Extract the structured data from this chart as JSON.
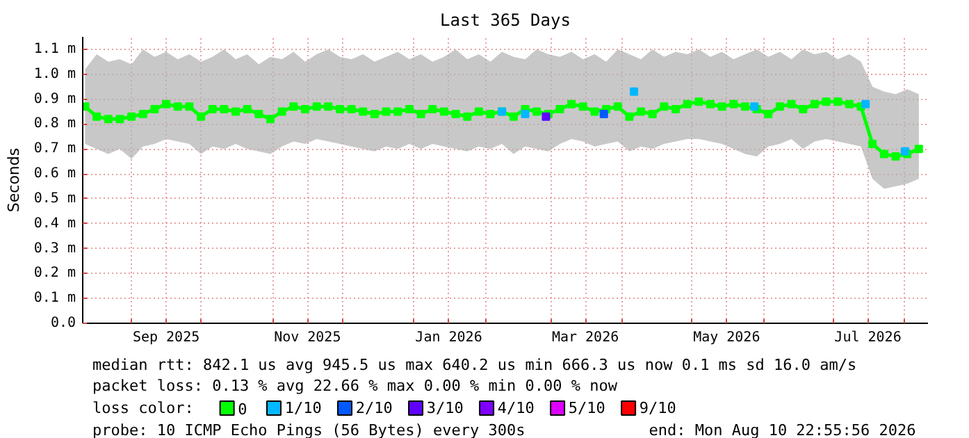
{
  "chart_data": {
    "type": "line",
    "title": "Last 365 Days",
    "ylabel": "Seconds",
    "legend_title": "loss color:",
    "legend": "bottom",
    "grid": true,
    "marker": "square",
    "x": [
      "2025-08-12",
      "2025-08-17",
      "2025-08-22",
      "2025-08-27",
      "2025-09-01",
      "2025-09-06",
      "2025-09-11",
      "2025-09-16",
      "2025-09-21",
      "2025-09-26",
      "2025-10-01",
      "2025-10-06",
      "2025-10-11",
      "2025-10-16",
      "2025-10-21",
      "2025-10-26",
      "2025-10-31",
      "2025-11-05",
      "2025-11-10",
      "2025-11-15",
      "2025-11-20",
      "2025-11-25",
      "2025-11-30",
      "2025-12-05",
      "2025-12-10",
      "2025-12-15",
      "2025-12-20",
      "2025-12-25",
      "2025-12-30",
      "2026-01-04",
      "2026-01-09",
      "2026-01-14",
      "2026-01-19",
      "2026-01-24",
      "2026-01-29",
      "2026-02-03",
      "2026-02-08",
      "2026-02-13",
      "2026-02-18",
      "2026-02-23",
      "2026-02-28",
      "2026-03-05",
      "2026-03-10",
      "2026-03-15",
      "2026-03-20",
      "2026-03-25",
      "2026-03-30",
      "2026-04-04",
      "2026-04-09",
      "2026-04-14",
      "2026-04-19",
      "2026-04-24",
      "2026-04-29",
      "2026-05-04",
      "2026-05-09",
      "2026-05-14",
      "2026-05-19",
      "2026-05-24",
      "2026-05-29",
      "2026-06-03",
      "2026-06-08",
      "2026-06-13",
      "2026-06-18",
      "2026-06-23",
      "2026-06-28",
      "2026-07-03",
      "2026-07-08",
      "2026-07-13",
      "2026-07-18",
      "2026-07-23",
      "2026-07-28",
      "2026-08-02",
      "2026-08-07"
    ],
    "xlim": [
      "2025-08-10T22:55",
      "2026-08-10T22:55"
    ],
    "xticks": [
      {
        "value": "2025-09-01",
        "label": null
      },
      {
        "value": "2025-09-16",
        "label": "Sep 2025"
      },
      {
        "value": "2025-10-01",
        "label": null
      },
      {
        "value": "2025-11-01",
        "label": null
      },
      {
        "value": "2025-11-16",
        "label": "Nov 2025"
      },
      {
        "value": "2025-12-01",
        "label": null
      },
      {
        "value": "2026-01-01",
        "label": null
      },
      {
        "value": "2026-01-16",
        "label": "Jan 2026"
      },
      {
        "value": "2026-02-01",
        "label": null
      },
      {
        "value": "2026-03-01",
        "label": null
      },
      {
        "value": "2026-03-16",
        "label": "Mar 2026"
      },
      {
        "value": "2026-04-01",
        "label": null
      },
      {
        "value": "2026-05-01",
        "label": null
      },
      {
        "value": "2026-05-16",
        "label": "May 2026"
      },
      {
        "value": "2026-06-01",
        "label": null
      },
      {
        "value": "2026-07-01",
        "label": null
      },
      {
        "value": "2026-07-16",
        "label": "Jul 2026"
      },
      {
        "value": "2026-08-01",
        "label": null
      }
    ],
    "ylim": [
      0,
      1.15
    ],
    "yticks": [
      {
        "value": 0,
        "label": "0.0"
      },
      {
        "value": 0.1,
        "label": "0.1 m"
      },
      {
        "value": 0.2,
        "label": "0.2 m"
      },
      {
        "value": 0.3,
        "label": "0.3 m"
      },
      {
        "value": 0.4,
        "label": "0.4 m"
      },
      {
        "value": 0.5,
        "label": "0.5 m"
      },
      {
        "value": 0.6,
        "label": "0.6 m"
      },
      {
        "value": 0.7,
        "label": "0.7 m"
      },
      {
        "value": 0.8,
        "label": "0.8 m"
      },
      {
        "value": 0.9,
        "label": "0.9 m"
      },
      {
        "value": 1.0,
        "label": "1.0 m"
      },
      {
        "value": 1.1,
        "label": "1.1 m"
      }
    ],
    "series": [
      {
        "name": "0",
        "color": "#00ff00",
        "values": [
          0.87,
          0.83,
          0.82,
          0.82,
          0.83,
          0.84,
          0.86,
          0.88,
          0.87,
          0.87,
          0.83,
          0.86,
          0.86,
          0.85,
          0.86,
          0.84,
          0.82,
          0.85,
          0.87,
          0.86,
          0.87,
          0.87,
          0.86,
          0.86,
          0.85,
          0.84,
          0.85,
          0.85,
          0.86,
          0.84,
          0.86,
          0.85,
          0.84,
          0.83,
          0.85,
          0.84,
          0.85,
          0.83,
          0.86,
          0.85,
          0.84,
          0.86,
          0.88,
          0.87,
          0.85,
          0.86,
          0.87,
          0.83,
          0.85,
          0.84,
          0.87,
          0.86,
          0.88,
          0.89,
          0.88,
          0.87,
          0.88,
          0.87,
          0.86,
          0.84,
          0.87,
          0.88,
          0.86,
          0.88,
          0.89,
          0.89,
          0.88,
          0.87,
          0.72,
          0.68,
          0.67,
          0.68,
          0.7
        ],
        "lower": [
          0.72,
          0.7,
          0.68,
          0.7,
          0.66,
          0.71,
          0.72,
          0.74,
          0.73,
          0.72,
          0.68,
          0.71,
          0.7,
          0.72,
          0.7,
          0.69,
          0.68,
          0.71,
          0.73,
          0.72,
          0.74,
          0.73,
          0.72,
          0.71,
          0.7,
          0.69,
          0.71,
          0.7,
          0.72,
          0.7,
          0.72,
          0.71,
          0.7,
          0.69,
          0.71,
          0.7,
          0.72,
          0.68,
          0.71,
          0.7,
          0.69,
          0.72,
          0.74,
          0.73,
          0.71,
          0.72,
          0.73,
          0.69,
          0.71,
          0.7,
          0.72,
          0.73,
          0.74,
          0.74,
          0.73,
          0.72,
          0.7,
          0.68,
          0.67,
          0.71,
          0.72,
          0.74,
          0.7,
          0.73,
          0.74,
          0.73,
          0.72,
          0.71,
          0.58,
          0.54,
          0.55,
          0.56,
          0.58
        ],
        "upper": [
          1.02,
          1.08,
          1.05,
          1.06,
          1.04,
          1.1,
          1.07,
          1.09,
          1.06,
          1.08,
          1.05,
          1.07,
          1.1,
          1.06,
          1.08,
          1.04,
          1.07,
          1.06,
          1.09,
          1.05,
          1.08,
          1.1,
          1.07,
          1.06,
          1.08,
          1.05,
          1.07,
          1.09,
          1.06,
          1.08,
          1.05,
          1.07,
          1.1,
          1.06,
          1.08,
          1.05,
          1.09,
          1.07,
          1.06,
          1.1,
          1.08,
          1.07,
          1.09,
          1.06,
          1.08,
          1.05,
          1.1,
          1.08,
          1.06,
          1.1,
          1.07,
          1.09,
          1.08,
          1.1,
          1.07,
          1.09,
          1.06,
          1.08,
          1.1,
          1.07,
          1.09,
          1.06,
          1.1,
          1.08,
          1.09,
          1.06,
          1.08,
          1.05,
          0.95,
          0.93,
          0.92,
          0.94,
          0.92
        ]
      },
      {
        "name": "1/10",
        "type": "scatter",
        "color": "#00b8ff",
        "x": [
          "2026-02-08",
          "2026-02-18",
          "2026-04-06",
          "2026-05-28",
          "2026-07-15",
          "2026-08-01"
        ],
        "values": [
          0.85,
          0.84,
          0.93,
          0.87,
          0.88,
          0.69
        ]
      },
      {
        "name": "2/10",
        "type": "scatter",
        "color": "#0059ff",
        "x": [
          "2026-03-24"
        ],
        "values": [
          0.84
        ]
      },
      {
        "name": "3/10",
        "type": "scatter",
        "color": "#5e00ff",
        "x": [
          "2026-02-27"
        ],
        "values": [
          0.83
        ]
      },
      {
        "name": "4/10",
        "type": "scatter",
        "color": "#7e00ff",
        "values": [
          null,
          null,
          null,
          null,
          null,
          null,
          null,
          null,
          null,
          null,
          null,
          null,
          null,
          null,
          null,
          null,
          null,
          null,
          null,
          null,
          null,
          null,
          null,
          null,
          null,
          null,
          null,
          null,
          null,
          null,
          null,
          null,
          null,
          null,
          null,
          null,
          null,
          null,
          null,
          null,
          null,
          null,
          null,
          null,
          null,
          null,
          null,
          null,
          null,
          null,
          null,
          null,
          null,
          null,
          null,
          null,
          null,
          null,
          null,
          null,
          null,
          null,
          null,
          null,
          null,
          null,
          null,
          null,
          null,
          null,
          null,
          null,
          null
        ]
      },
      {
        "name": "5/10",
        "type": "scatter",
        "color": "#dd00ff",
        "values": [
          null,
          null,
          null,
          null,
          null,
          null,
          null,
          null,
          null,
          null,
          null,
          null,
          null,
          null,
          null,
          null,
          null,
          null,
          null,
          null,
          null,
          null,
          null,
          null,
          null,
          null,
          null,
          null,
          null,
          null,
          null,
          null,
          null,
          null,
          null,
          null,
          null,
          null,
          null,
          null,
          null,
          null,
          null,
          null,
          null,
          null,
          null,
          null,
          null,
          null,
          null,
          null,
          null,
          null,
          null,
          null,
          null,
          null,
          null,
          null,
          null,
          null,
          null,
          null,
          null,
          null,
          null,
          null,
          null,
          null,
          null,
          null,
          null
        ]
      },
      {
        "name": "9/10",
        "type": "scatter",
        "color": "#ff0000",
        "values": [
          null,
          null,
          null,
          null,
          null,
          null,
          null,
          null,
          null,
          null,
          null,
          null,
          null,
          null,
          null,
          null,
          null,
          null,
          null,
          null,
          null,
          null,
          null,
          null,
          null,
          null,
          null,
          null,
          null,
          null,
          null,
          null,
          null,
          null,
          null,
          null,
          null,
          null,
          null,
          null,
          null,
          null,
          null,
          null,
          null,
          null,
          null,
          null,
          null,
          null,
          null,
          null,
          null,
          null,
          null,
          null,
          null,
          null,
          null,
          null,
          null,
          null,
          null,
          null,
          null,
          null,
          null,
          null,
          null,
          null,
          null,
          null,
          null
        ]
      }
    ],
    "annotations": [
      "median rtt:  842.1 us avg   945.5 us max   640.2 us min   666.3 us now   0.1 ms sd  16.0   am/s",
      "packet loss: 0.13 % avg   22.66 % max   0.00 % min   0.00 % now",
      "probe:       10 ICMP Echo Pings (56 Bytes) every 300s",
      "end: Mon Aug 10 22:55:56 2026"
    ]
  }
}
